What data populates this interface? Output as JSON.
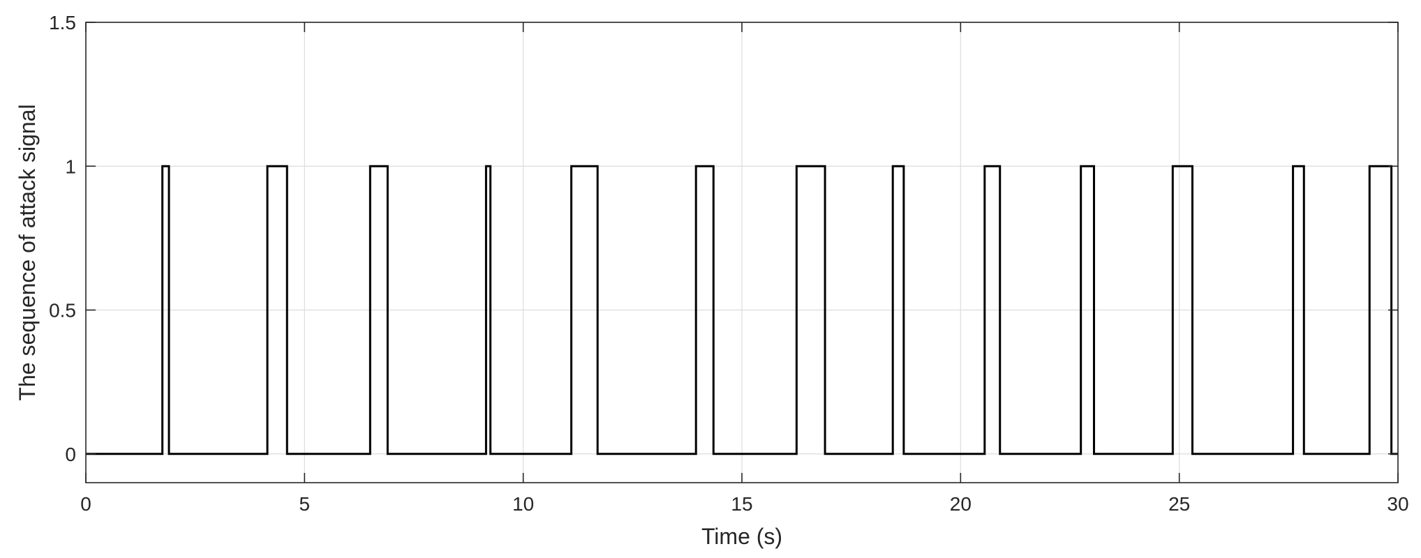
{
  "chart_data": {
    "type": "line",
    "title": "",
    "xlabel": "Time (s)",
    "ylabel": "The sequence of attack signal",
    "xlim": [
      0,
      30
    ],
    "ylim": [
      -0.1,
      1.5
    ],
    "xticks": [
      0,
      5,
      10,
      15,
      20,
      25,
      30
    ],
    "xtick_labels": [
      "0",
      "5",
      "10",
      "15",
      "20",
      "25",
      "30"
    ],
    "yticks": [
      0,
      0.5,
      1,
      1.5
    ],
    "ytick_labels": [
      "0",
      "0.5",
      "1",
      "1.5"
    ],
    "grid": true,
    "legend": "none",
    "line_color": "#000000",
    "series": [
      {
        "step": "post",
        "x": [
          0,
          1.75,
          1.9,
          4.15,
          4.6,
          6.5,
          6.9,
          9.15,
          9.25,
          11.1,
          11.7,
          13.95,
          14.35,
          16.25,
          16.9,
          18.45,
          18.7,
          20.55,
          20.9,
          22.75,
          23.05,
          24.85,
          25.3,
          27.6,
          27.85,
          29.35,
          29.85,
          30
        ],
        "y": [
          0,
          1,
          0,
          1,
          0,
          1,
          0,
          1,
          0,
          1,
          0,
          1,
          0,
          1,
          0,
          1,
          0,
          1,
          0,
          1,
          0,
          1,
          0,
          1,
          0,
          1,
          0,
          0
        ]
      }
    ]
  }
}
